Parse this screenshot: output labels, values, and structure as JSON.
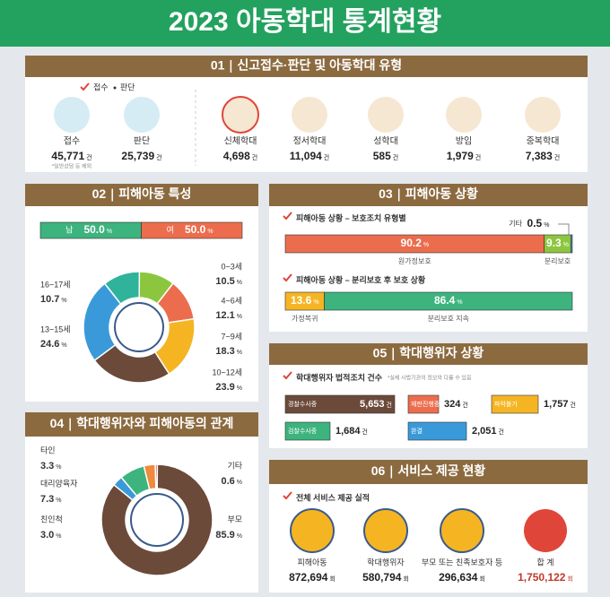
{
  "title": "2023 아동학대 통계현황",
  "reports": {
    "number": "01",
    "title": "신고접수·판단 및 아동학대 유형",
    "legend": [
      "접수",
      "판단"
    ],
    "unit": "건",
    "note": "*일반상담 등 제외",
    "items": [
      {
        "label": "접수",
        "value": 45771,
        "value_label": "45,771"
      },
      {
        "label": "판단",
        "value": 25739,
        "value_label": "25,739"
      },
      {
        "label": "신체학대",
        "value": 4698,
        "value_label": "4,698"
      },
      {
        "label": "정서학대",
        "value": 11094,
        "value_label": "11,094"
      },
      {
        "label": "성학대",
        "value": 585
      },
      {
        "label": "방임",
        "value": 1979,
        "value_label": "1,979"
      },
      {
        "label": "중복학대",
        "value": 7383,
        "value_label": "7,383"
      }
    ]
  },
  "children": {
    "number": "02",
    "title": "피해아동 특성",
    "unit": "%",
    "gender": [
      {
        "label": "남",
        "value": 50.0,
        "value_label": "50.0",
        "color": "#3db37e"
      },
      {
        "label": "여",
        "value": 50.0,
        "value_label": "50.0",
        "color": "#ec6d4d"
      }
    ],
    "ages": [
      {
        "label": "0~3세",
        "value": 10.5,
        "color": "#8cc63f"
      },
      {
        "label": "4~6세",
        "value": 12.1,
        "color": "#ec6d4d"
      },
      {
        "label": "7~9세",
        "value": 18.3,
        "color": "#f5b523"
      },
      {
        "label": "10~12세",
        "value": 23.9,
        "color": "#6b4a3a"
      },
      {
        "label": "13~15세",
        "value": 24.6,
        "color": "#3a9ad9"
      },
      {
        "label": "16~17세",
        "value": 10.7,
        "color": "#2fb39a"
      }
    ]
  },
  "situation": {
    "number": "03",
    "title": "피해아동 상황",
    "unit": "%",
    "protection": {
      "title": "피해아동 상황 – 보호조치 유형별",
      "items": [
        {
          "label": "원가정보호",
          "value": 90.2,
          "color": "#ec6d4d"
        },
        {
          "label": "분리보호",
          "value": 9.3,
          "color": "#8cc63f"
        },
        {
          "label": "기타",
          "value": 0.5,
          "color": "#3a9ad9"
        }
      ]
    },
    "after": {
      "title": "피해아동 상황 – 분리보호 후 보호 상황",
      "items": [
        {
          "label": "가정복귀",
          "value": 13.6,
          "color": "#f5b523"
        },
        {
          "label": "분리보호 지속",
          "value": 86.4,
          "color": "#3db37e"
        }
      ]
    }
  },
  "relations": {
    "number": "04",
    "title": "학대행위자와 피해아동의 관계",
    "unit": "%",
    "items": [
      {
        "label": "부모",
        "value": 85.9,
        "color": "#6b4a3a"
      },
      {
        "label": "친인척",
        "value": 3.0,
        "value_label": "3.0",
        "color": "#3a9ad9"
      },
      {
        "label": "대리양육자",
        "value": 7.3,
        "color": "#3db37e"
      },
      {
        "label": "타인",
        "value": 3.3,
        "color": "#f08a3c"
      },
      {
        "label": "기타",
        "value": 0.6,
        "color": "#e0453a"
      }
    ]
  },
  "abusers": {
    "number": "05",
    "title": "학대행위자 상황",
    "subtitle": "학대행위자 법적조치 건수",
    "note": "*실제 사법기관의 정보와 다를 수 있음",
    "unit": "건",
    "items": [
      {
        "label": "경찰수사중",
        "value": 5653,
        "value_label": "5,653",
        "color": "#6b4a3a"
      },
      {
        "label": "재판진행중",
        "value": 324,
        "color": "#ec6d4d"
      },
      {
        "label": "파악불가",
        "value": 1757,
        "value_label": "1,757",
        "color": "#f5b523"
      },
      {
        "label": "검찰수사중",
        "value": 1684,
        "value_label": "1,684",
        "color": "#3db37e"
      },
      {
        "label": "완결",
        "value": 2051,
        "value_label": "2,051",
        "color": "#3a9ad9"
      }
    ]
  },
  "services": {
    "number": "06",
    "title": "서비스 제공 현황",
    "subtitle": "전체 서비스 제공 실적",
    "unit": "회",
    "items": [
      {
        "label": "피해아동",
        "value": 872694,
        "value_label": "872,694"
      },
      {
        "label": "학대행위자",
        "value": 580794,
        "value_label": "580,794"
      },
      {
        "label": "부모 또는 친족보호자 등",
        "value": 296634,
        "value_label": "296,634"
      },
      {
        "label": "합 계",
        "value": 1750122,
        "value_label": "1,750,122"
      }
    ]
  }
}
